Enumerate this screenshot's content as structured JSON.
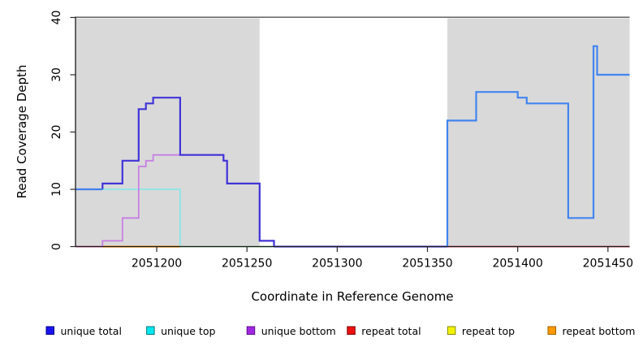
{
  "chart_data": {
    "type": "line",
    "subtype": "step-coverage-plot",
    "title": "",
    "xlabel": "Coordinate in Reference Genome",
    "ylabel": "Read Coverage Depth",
    "xlim": [
      2051155,
      2051462
    ],
    "ylim": [
      0,
      40
    ],
    "grid": false,
    "background": "#ffffff",
    "shade_color": "#d9d9d9",
    "xticks": [
      {
        "value": 2051200,
        "label": "2051200"
      },
      {
        "value": 2051250,
        "label": "2051250"
      },
      {
        "value": 2051300,
        "label": "2051300"
      },
      {
        "value": 2051350,
        "label": "2051350"
      },
      {
        "value": 2051400,
        "label": "2051400"
      },
      {
        "value": 2051450,
        "label": "2051450"
      }
    ],
    "yticks": [
      {
        "value": 0,
        "label": "0"
      },
      {
        "value": 10,
        "label": "10"
      },
      {
        "value": 20,
        "label": "20"
      },
      {
        "value": 30,
        "label": "30"
      },
      {
        "value": 40,
        "label": "40"
      }
    ],
    "shaded_regions": [
      {
        "x0": 2051155,
        "x1": 2051257,
        "color": "#d9d9d9"
      },
      {
        "x0": 2051361,
        "x1": 2051462,
        "color": "#d9d9d9"
      }
    ],
    "series": [
      {
        "name": "repeat-total-zero-left-magenta",
        "color": "#e0509e",
        "width": 1.8,
        "points": [
          [
            2051155,
            0
          ],
          [
            2051170,
            0
          ]
        ]
      },
      {
        "name": "repeat-bottom-zero-orange",
        "color": "#ff9e20",
        "width": 2.2,
        "points": [
          [
            2051170,
            0
          ],
          [
            2051213,
            0
          ]
        ]
      },
      {
        "name": "repeat-top-zero-green",
        "color": "#90d79b",
        "width": 1.8,
        "points": [
          [
            2051213,
            0
          ],
          [
            2051265,
            0
          ]
        ]
      },
      {
        "name": "repeat-total-zero-right-red",
        "color": "#e04a58",
        "width": 1.8,
        "points": [
          [
            2051361,
            0
          ],
          [
            2051462,
            0
          ]
        ]
      },
      {
        "name": "unique-top",
        "color": "#8ce5e8",
        "width": 1.8,
        "points": [
          [
            2051155,
            10
          ],
          [
            2051213,
            10
          ],
          [
            2051213,
            0
          ]
        ]
      },
      {
        "name": "unique-bottom",
        "color": "#c77fe3",
        "width": 1.8,
        "points": [
          [
            2051170,
            0
          ],
          [
            2051170,
            1
          ],
          [
            2051181,
            1
          ],
          [
            2051181,
            5
          ],
          [
            2051190,
            5
          ],
          [
            2051190,
            14
          ],
          [
            2051194,
            14
          ],
          [
            2051194,
            15
          ],
          [
            2051198,
            15
          ],
          [
            2051198,
            16
          ],
          [
            2051237,
            16
          ],
          [
            2051237,
            15
          ],
          [
            2051239,
            15
          ],
          [
            2051239,
            11
          ],
          [
            2051257,
            11
          ],
          [
            2051257,
            1
          ],
          [
            2051265,
            1
          ],
          [
            2051265,
            0
          ]
        ]
      },
      {
        "name": "unique-total-left",
        "color": "#4134d8",
        "width": 2.2,
        "points": [
          [
            2051170,
            10
          ],
          [
            2051170,
            11
          ],
          [
            2051181,
            11
          ],
          [
            2051181,
            15
          ],
          [
            2051190,
            15
          ],
          [
            2051190,
            24
          ],
          [
            2051194,
            24
          ],
          [
            2051194,
            25
          ],
          [
            2051198,
            25
          ],
          [
            2051198,
            26
          ],
          [
            2051213,
            26
          ],
          [
            2051213,
            16
          ],
          [
            2051237,
            16
          ],
          [
            2051237,
            15
          ],
          [
            2051239,
            15
          ],
          [
            2051239,
            11
          ],
          [
            2051257,
            11
          ],
          [
            2051257,
            1
          ],
          [
            2051265,
            1
          ],
          [
            2051265,
            0
          ]
        ]
      },
      {
        "name": "unique-total-zero-run",
        "color": "#6355e2",
        "width": 2.2,
        "points": [
          [
            2051265,
            0
          ],
          [
            2051361,
            0
          ]
        ]
      },
      {
        "name": "unique-total-left-edge",
        "color": "#4080ee",
        "width": 2.2,
        "points": [
          [
            2051155,
            10
          ],
          [
            2051170,
            10
          ]
        ]
      },
      {
        "name": "unique-total-right",
        "color": "#4285f0",
        "width": 2.2,
        "points": [
          [
            2051361,
            0
          ],
          [
            2051361,
            22
          ],
          [
            2051377,
            22
          ],
          [
            2051377,
            27
          ],
          [
            2051400,
            27
          ],
          [
            2051400,
            26
          ],
          [
            2051405,
            26
          ],
          [
            2051405,
            25
          ],
          [
            2051428,
            25
          ],
          [
            2051428,
            5
          ],
          [
            2051442,
            5
          ],
          [
            2051442,
            35
          ],
          [
            2051444,
            35
          ],
          [
            2051444,
            30
          ],
          [
            2051462,
            30
          ]
        ]
      }
    ],
    "legend": {
      "position": "bottom",
      "items": [
        {
          "label": "unique total",
          "fill": "#1a12ee",
          "border": "#000088"
        },
        {
          "label": "unique top",
          "fill": "#00e6ee",
          "border": "#007a7a"
        },
        {
          "label": "unique bottom",
          "fill": "#a228e0",
          "border": "#5c0e8b"
        },
        {
          "label": "repeat total",
          "fill": "#ee1111",
          "border": "#7a0000"
        },
        {
          "label": "repeat top",
          "fill": "#f2f200",
          "border": "#8a8a00"
        },
        {
          "label": "repeat bottom",
          "fill": "#ff9900",
          "border": "#9e5f00"
        }
      ]
    }
  }
}
